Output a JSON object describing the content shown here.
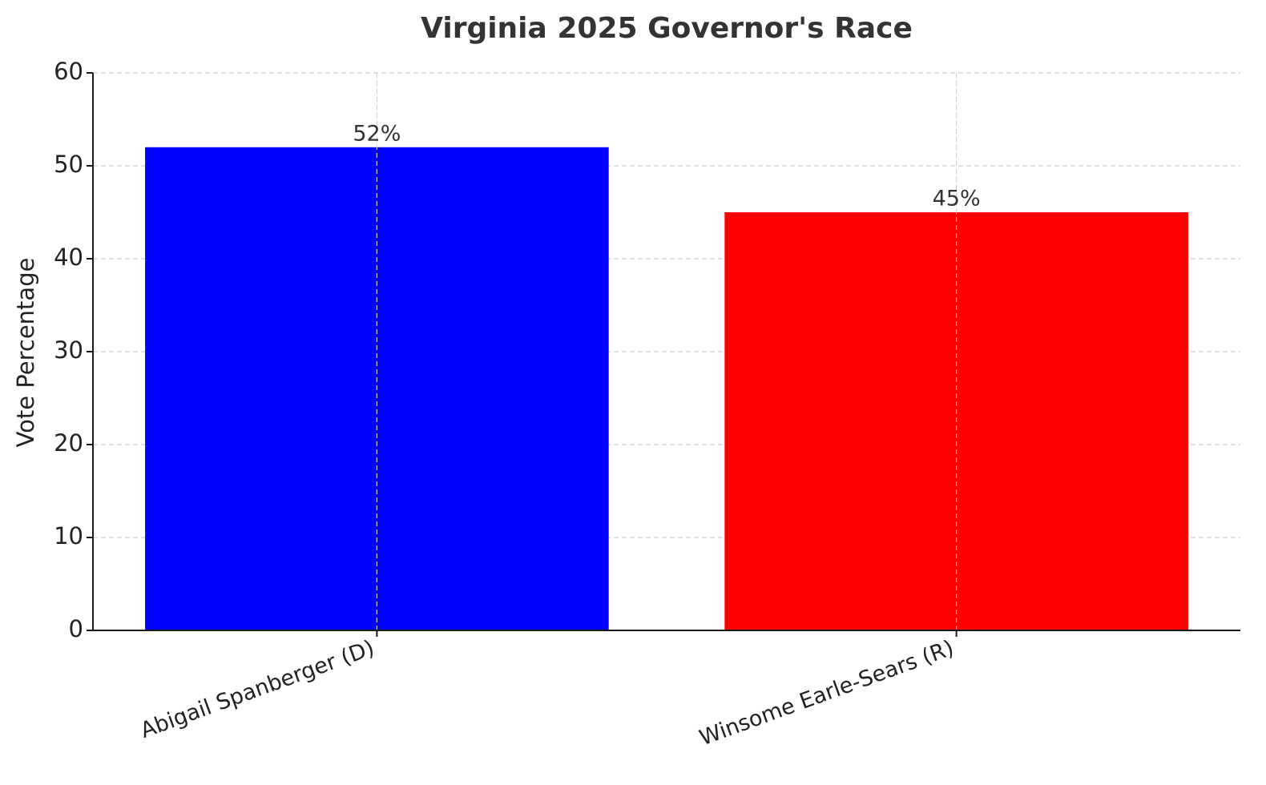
{
  "chart_data": {
    "type": "bar",
    "title": "Virginia 2025 Governor's Race",
    "y_label": "Vote Percentage",
    "categories": [
      "Abigail Spanberger (D)",
      "Winsome Earle-Sears (R)"
    ],
    "values": [
      52,
      45
    ],
    "value_labels": [
      "52%",
      "45%"
    ],
    "colors": [
      "#0000ff",
      "#ff0000"
    ],
    "ylim": [
      0,
      60
    ],
    "yticks": [
      0,
      10,
      20,
      30,
      40,
      50,
      60
    ],
    "grid": true
  }
}
